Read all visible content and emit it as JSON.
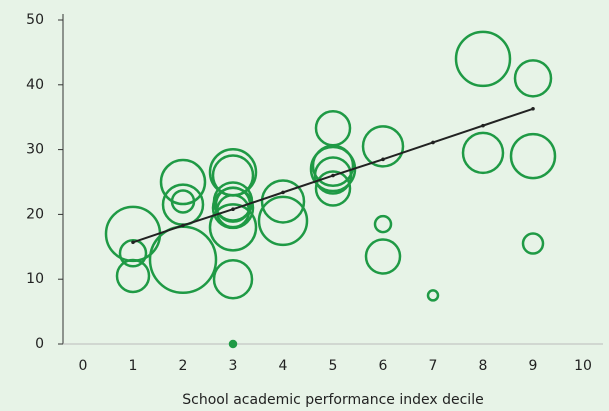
{
  "chart_data": {
    "type": "bubble",
    "xlabel": "School academic performance index decile",
    "xlim": [
      0,
      10
    ],
    "xticks": [
      0,
      1,
      2,
      3,
      4,
      5,
      6,
      7,
      8,
      9,
      10
    ],
    "ylim": [
      0,
      50
    ],
    "yticks": [
      0,
      10,
      20,
      30,
      40,
      50
    ],
    "series": [
      {
        "type": "bubble",
        "color": "#1f9a45",
        "x": [
          1,
          1,
          1,
          2,
          2,
          2,
          2,
          3,
          3,
          3,
          3,
          3,
          3,
          3,
          3,
          3,
          4,
          4,
          5,
          5,
          5,
          5,
          5,
          6,
          6,
          6,
          7,
          8,
          8,
          9,
          9,
          9
        ],
        "values": [
          17,
          14,
          10.5,
          13,
          25,
          22,
          21.5,
          26.5,
          26,
          22,
          21.5,
          21,
          20.5,
          18,
          10,
          0,
          22,
          19,
          33.3,
          27.5,
          27,
          26,
          24,
          30.5,
          18.5,
          13.5,
          7.5,
          44,
          29.5,
          41,
          29,
          15.5
        ],
        "sizes": [
          27,
          13,
          16,
          33,
          22,
          11,
          20,
          23,
          20,
          19,
          17,
          20,
          16,
          23,
          19,
          3,
          21,
          24,
          17,
          20,
          22,
          18,
          17,
          20,
          8,
          17,
          5,
          27,
          20,
          18,
          22,
          10
        ]
      },
      {
        "type": "line",
        "color": "#222222",
        "x": [
          1,
          2,
          3,
          4,
          5,
          6,
          7,
          8,
          9
        ],
        "values": [
          15.7,
          18.3,
          20.8,
          23.4,
          26.0,
          28.5,
          31.1,
          33.7,
          36.3
        ]
      }
    ]
  }
}
